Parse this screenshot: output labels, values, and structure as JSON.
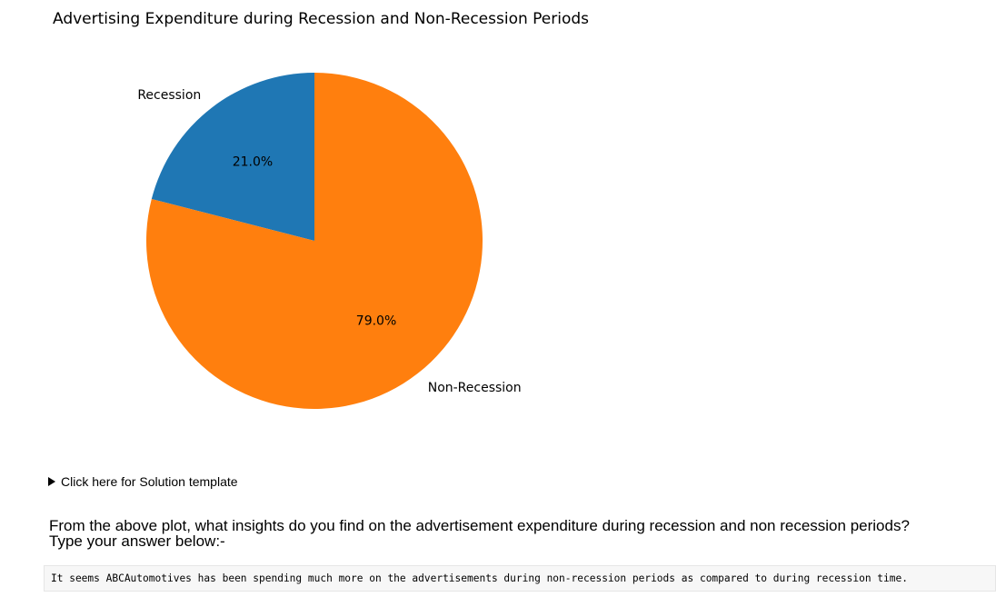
{
  "chart_data": {
    "type": "pie",
    "title": "Advertising Expenditure during Recession and Non-Recession Periods",
    "categories": [
      "Recession",
      "Non-Recession"
    ],
    "values": [
      21.0,
      79.0
    ],
    "value_labels": [
      "21.0%",
      "79.0%"
    ],
    "colors": [
      "#1f77b4",
      "#ff7f0e"
    ],
    "start_angle_deg": 90
  },
  "details": {
    "summary_label": "Click here for Solution template"
  },
  "question": {
    "line1": "From the above plot, what insights do you find on the advertisement expenditure during recession and non recession periods?",
    "line2": "Type your answer below:-"
  },
  "answer": {
    "text": "It seems ABCAutomotives has been spending much more on the advertisements during non-recession periods as compared to during recession time."
  }
}
